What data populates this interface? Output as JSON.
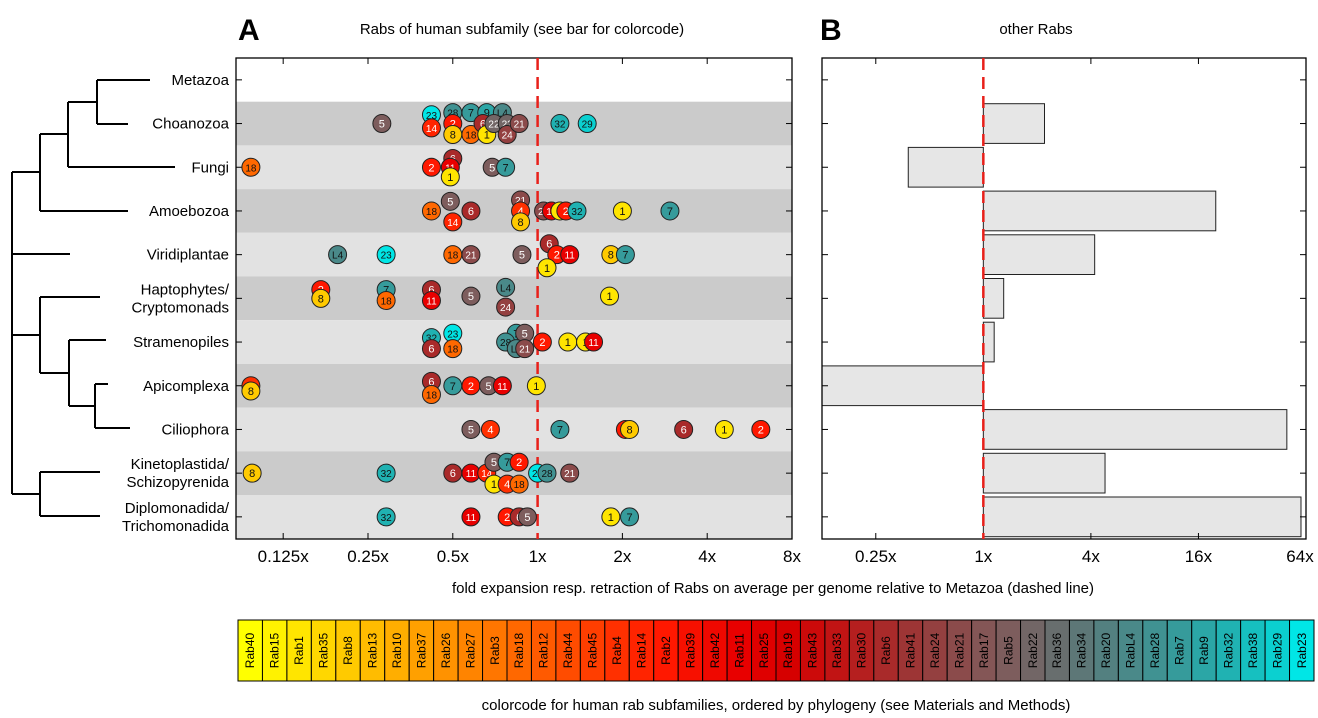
{
  "panels": {
    "a": {
      "letter": "A",
      "title": "Rabs of human subfamily (see bar for colorcode)"
    },
    "b": {
      "letter": "B",
      "title": "other Rabs"
    }
  },
  "xlabel": "fold expansion resp. retraction of Rabs on average per genome relative to Metazoa (dashed line)",
  "colorbar_caption": "colorcode for human rab subfamilies, ordered by phylogeny (see Materials and Methods)",
  "taxa": [
    {
      "label": "Metazoa"
    },
    {
      "label": "Choanozoa"
    },
    {
      "label": "Fungi"
    },
    {
      "label": "Amoebozoa"
    },
    {
      "label": "Viridiplantae"
    },
    {
      "label": "Haptophytes/\nCryptomonads"
    },
    {
      "label": "Stramenopiles"
    },
    {
      "label": "Apicomplexa"
    },
    {
      "label": "Ciliophora"
    },
    {
      "label": "Kinetoplastida/\nSchizopyrenida"
    },
    {
      "label": "Diplomonadida/\nTrichomonadida"
    }
  ],
  "colors": {
    "Rab40": "#ffff00",
    "Rab15": "#fff200",
    "Rab1": "#ffe500",
    "Rab35": "#ffd700",
    "Rab8": "#ffca00",
    "Rab13": "#ffbc00",
    "Rab10": "#ffae00",
    "Rab37": "#ffa000",
    "Rab26": "#ff9200",
    "Rab27": "#ff8400",
    "Rab3": "#ff7600",
    "Rab18": "#ff6800",
    "Rab12": "#ff5a00",
    "Rab44": "#ff4c00",
    "Rab45": "#ff3e00",
    "Rab4": "#ff3000",
    "Rab14": "#ff2400",
    "Rab2": "#ff1800",
    "Rab39": "#f71000",
    "Rab42": "#ef0800",
    "Rab11": "#e80000",
    "Rab25": "#df0000",
    "Rab19": "#d60000",
    "Rab43": "#cc0a0a",
    "Rab33": "#c11414",
    "Rab30": "#b51f1f",
    "Rab6": "#a92a2a",
    "Rab41": "#9d3535",
    "Rab24": "#944040",
    "Rab21": "#8b4b4b",
    "Rab17": "#845656",
    "Rab5": "#7d5d5d",
    "Rab22": "#726666",
    "Rab36": "#686e6e",
    "Rab34": "#5d7777",
    "Rab20": "#538080",
    "RabL4": "#4a8989",
    "Rab28": "#409292",
    "Rab7": "#369b9b",
    "Rab9": "#2ba6a6",
    "Rab32": "#20b2b2",
    "Rab38": "#16c0c0",
    "Rab29": "#0bd0d0",
    "Rab23": "#00e6e6"
  },
  "colorbar_order": [
    "Rab40",
    "Rab15",
    "Rab1",
    "Rab35",
    "Rab8",
    "Rab13",
    "Rab10",
    "Rab37",
    "Rab26",
    "Rab27",
    "Rab3",
    "Rab18",
    "Rab12",
    "Rab44",
    "Rab45",
    "Rab4",
    "Rab14",
    "Rab2",
    "Rab39",
    "Rab42",
    "Rab11",
    "Rab25",
    "Rab19",
    "Rab43",
    "Rab33",
    "Rab30",
    "Rab6",
    "Rab41",
    "Rab24",
    "Rab21",
    "Rab17",
    "Rab5",
    "Rab22",
    "Rab36",
    "Rab34",
    "Rab20",
    "RabL4",
    "Rab28",
    "Rab7",
    "Rab9",
    "Rab32",
    "Rab38",
    "Rab29",
    "Rab23"
  ],
  "chart_data": [
    {
      "type": "scatter",
      "panel": "A",
      "title": "Rabs of human subfamily (see bar for colorcode)",
      "x_scale": "log2",
      "xlim": [
        0.085,
        8
      ],
      "xticks": [
        0.125,
        0.25,
        0.5,
        1,
        2,
        4,
        8
      ],
      "xtick_labels": [
        "0.125x",
        "0.25x",
        "0.5x",
        "1x",
        "2x",
        "4x",
        "8x"
      ],
      "reference_line": 1,
      "categories": [
        "Metazoa",
        "Choanozoa",
        "Fungi",
        "Amoebozoa",
        "Viridiplantae",
        "Haptophytes/Cryptomonads",
        "Stramenopiles",
        "Apicomplexa",
        "Ciliophora",
        "Kinetoplastida/Schizopyrenida",
        "Diplomonadida/Trichomonadida"
      ],
      "points": [
        {
          "row": 1,
          "rab": "Rab23",
          "label": "23",
          "x": 0.42,
          "dy": -0.2
        },
        {
          "row": 1,
          "rab": "Rab28",
          "label": "28",
          "x": 0.5,
          "dy": -0.25
        },
        {
          "row": 1,
          "rab": "Rab7",
          "label": "7",
          "x": 0.58,
          "dy": -0.25
        },
        {
          "row": 1,
          "rab": "Rab9",
          "label": "9",
          "x": 0.66,
          "dy": -0.25
        },
        {
          "row": 1,
          "rab": "RabL4",
          "label": "L4",
          "x": 0.75,
          "dy": -0.25
        },
        {
          "row": 1,
          "rab": "Rab5",
          "label": "5",
          "x": 0.28,
          "dy": 0
        },
        {
          "row": 1,
          "rab": "Rab14",
          "label": "14",
          "x": 0.42,
          "dy": 0.1
        },
        {
          "row": 1,
          "rab": "Rab2",
          "label": "2",
          "x": 0.5,
          "dy": 0
        },
        {
          "row": 1,
          "rab": "Rab8",
          "label": "8",
          "x": 0.5,
          "dy": 0.25
        },
        {
          "row": 1,
          "rab": "Rab18",
          "label": "18",
          "x": 0.58,
          "dy": 0.25
        },
        {
          "row": 1,
          "rab": "Rab6",
          "label": "6",
          "x": 0.64,
          "dy": 0
        },
        {
          "row": 1,
          "rab": "Rab1",
          "label": "1",
          "x": 0.66,
          "dy": 0.25
        },
        {
          "row": 1,
          "rab": "Rab22",
          "label": "22",
          "x": 0.7,
          "dy": 0
        },
        {
          "row": 1,
          "rab": "Rab22",
          "label": "22",
          "x": 0.78,
          "dy": 0
        },
        {
          "row": 1,
          "rab": "Rab24",
          "label": "24",
          "x": 0.78,
          "dy": 0.25
        },
        {
          "row": 1,
          "rab": "Rab21",
          "label": "21",
          "x": 0.86,
          "dy": 0
        },
        {
          "row": 1,
          "rab": "Rab32",
          "label": "32",
          "x": 1.2,
          "dy": 0
        },
        {
          "row": 1,
          "rab": "Rab29",
          "label": "29",
          "x": 1.5,
          "dy": 0
        },
        {
          "row": 2,
          "rab": "Rab18",
          "label": "18",
          "x": 0.096,
          "dy": 0
        },
        {
          "row": 2,
          "rab": "Rab2",
          "label": "2",
          "x": 0.42,
          "dy": 0
        },
        {
          "row": 2,
          "rab": "Rab6",
          "label": "6",
          "x": 0.5,
          "dy": -0.2
        },
        {
          "row": 2,
          "rab": "Rab11",
          "label": "11",
          "x": 0.49,
          "dy": 0
        },
        {
          "row": 2,
          "rab": "Rab1",
          "label": "1",
          "x": 0.49,
          "dy": 0.22
        },
        {
          "row": 2,
          "rab": "Rab5",
          "label": "5",
          "x": 0.69,
          "dy": 0
        },
        {
          "row": 2,
          "rab": "Rab7",
          "label": "7",
          "x": 0.77,
          "dy": 0
        },
        {
          "row": 3,
          "rab": "Rab5",
          "label": "5",
          "x": 0.49,
          "dy": -0.22
        },
        {
          "row": 3,
          "rab": "Rab21",
          "label": "21",
          "x": 0.87,
          "dy": -0.25
        },
        {
          "row": 3,
          "rab": "Rab18",
          "label": "18",
          "x": 0.42,
          "dy": 0
        },
        {
          "row": 3,
          "rab": "Rab6",
          "label": "6",
          "x": 0.58,
          "dy": 0
        },
        {
          "row": 3,
          "rab": "Rab4",
          "label": "4",
          "x": 0.87,
          "dy": 0
        },
        {
          "row": 3,
          "rab": "Rab14",
          "label": "14",
          "x": 0.5,
          "dy": 0.25
        },
        {
          "row": 3,
          "rab": "Rab8",
          "label": "8",
          "x": 0.87,
          "dy": 0.25
        },
        {
          "row": 3,
          "rab": "Rab21",
          "label": "21",
          "x": 1.05,
          "dy": 0
        },
        {
          "row": 3,
          "rab": "Rab11",
          "label": "11",
          "x": 1.12,
          "dy": 0
        },
        {
          "row": 3,
          "rab": "Rab1",
          "label": "1",
          "x": 1.2,
          "dy": 0
        },
        {
          "row": 3,
          "rab": "Rab2",
          "label": "2",
          "x": 1.26,
          "dy": 0
        },
        {
          "row": 3,
          "rab": "Rab32",
          "label": "32",
          "x": 1.38,
          "dy": 0
        },
        {
          "row": 3,
          "rab": "Rab1",
          "label": "1",
          "x": 2.0,
          "dy": 0
        },
        {
          "row": 3,
          "rab": "Rab7",
          "label": "7",
          "x": 2.95,
          "dy": 0
        },
        {
          "row": 4,
          "rab": "RabL4",
          "label": "L4",
          "x": 0.195,
          "dy": 0
        },
        {
          "row": 4,
          "rab": "Rab23",
          "label": "23",
          "x": 0.29,
          "dy": 0
        },
        {
          "row": 4,
          "rab": "Rab18",
          "label": "18",
          "x": 0.5,
          "dy": 0
        },
        {
          "row": 4,
          "rab": "Rab21",
          "label": "21",
          "x": 0.58,
          "dy": 0
        },
        {
          "row": 4,
          "rab": "Rab5",
          "label": "5",
          "x": 0.88,
          "dy": 0
        },
        {
          "row": 4,
          "rab": "Rab6",
          "label": "6",
          "x": 1.1,
          "dy": -0.25
        },
        {
          "row": 4,
          "rab": "Rab2",
          "label": "2",
          "x": 1.17,
          "dy": 0
        },
        {
          "row": 4,
          "rab": "Rab11",
          "label": "11",
          "x": 1.3,
          "dy": 0
        },
        {
          "row": 4,
          "rab": "Rab1",
          "label": "1",
          "x": 1.08,
          "dy": 0.3
        },
        {
          "row": 4,
          "rab": "Rab8",
          "label": "8",
          "x": 1.82,
          "dy": 0
        },
        {
          "row": 4,
          "rab": "Rab7",
          "label": "7",
          "x": 2.05,
          "dy": 0
        },
        {
          "row": 5,
          "rab": "Rab2",
          "label": "2",
          "x": 0.17,
          "dy": -0.2
        },
        {
          "row": 5,
          "rab": "Rab8",
          "label": "8",
          "x": 0.17,
          "dy": 0
        },
        {
          "row": 5,
          "rab": "Rab7",
          "label": "7",
          "x": 0.29,
          "dy": -0.2
        },
        {
          "row": 5,
          "rab": "Rab18",
          "label": "18",
          "x": 0.29,
          "dy": 0.05
        },
        {
          "row": 5,
          "rab": "Rab6",
          "label": "6",
          "x": 0.42,
          "dy": -0.2
        },
        {
          "row": 5,
          "rab": "Rab11",
          "label": "11",
          "x": 0.42,
          "dy": 0.05
        },
        {
          "row": 5,
          "rab": "Rab5",
          "label": "5",
          "x": 0.58,
          "dy": -0.05
        },
        {
          "row": 5,
          "rab": "RabL4",
          "label": "L4",
          "x": 0.77,
          "dy": -0.25
        },
        {
          "row": 5,
          "rab": "Rab24",
          "label": "24",
          "x": 0.77,
          "dy": 0.2
        },
        {
          "row": 5,
          "rab": "Rab1",
          "label": "1",
          "x": 1.8,
          "dy": -0.05
        },
        {
          "row": 6,
          "rab": "Rab32",
          "label": "32",
          "x": 0.42,
          "dy": -0.1
        },
        {
          "row": 6,
          "rab": "Rab23",
          "label": "23",
          "x": 0.5,
          "dy": -0.2
        },
        {
          "row": 6,
          "rab": "Rab6",
          "label": "6",
          "x": 0.42,
          "dy": 0.15
        },
        {
          "row": 6,
          "rab": "Rab18",
          "label": "18",
          "x": 0.5,
          "dy": 0.15
        },
        {
          "row": 6,
          "rab": "Rab7",
          "label": "7",
          "x": 0.84,
          "dy": -0.2
        },
        {
          "row": 6,
          "rab": "Rab5",
          "label": "5",
          "x": 0.9,
          "dy": -0.2
        },
        {
          "row": 6,
          "rab": "Rab28",
          "label": "28",
          "x": 0.77,
          "dy": 0
        },
        {
          "row": 6,
          "rab": "RabL4",
          "label": "L4",
          "x": 0.84,
          "dy": 0.15
        },
        {
          "row": 6,
          "rab": "Rab21",
          "label": "21",
          "x": 0.9,
          "dy": 0.15
        },
        {
          "row": 6,
          "rab": "Rab2",
          "label": "2",
          "x": 1.04,
          "dy": 0
        },
        {
          "row": 6,
          "rab": "Rab1",
          "label": "1",
          "x": 1.28,
          "dy": 0
        },
        {
          "row": 6,
          "rab": "Rab1",
          "label": "1",
          "x": 1.48,
          "dy": 0
        },
        {
          "row": 6,
          "rab": "Rab11",
          "label": "11",
          "x": 1.58,
          "dy": 0
        },
        {
          "row": 7,
          "rab": "Rab4",
          "label": "4",
          "x": 0.096,
          "dy": 0
        },
        {
          "row": 7,
          "rab": "Rab8",
          "label": "8",
          "x": 0.096,
          "dy": 0.12
        },
        {
          "row": 7,
          "rab": "Rab6",
          "label": "6",
          "x": 0.42,
          "dy": -0.1
        },
        {
          "row": 7,
          "rab": "Rab18",
          "label": "18",
          "x": 0.42,
          "dy": 0.2
        },
        {
          "row": 7,
          "rab": "Rab7",
          "label": "7",
          "x": 0.5,
          "dy": 0
        },
        {
          "row": 7,
          "rab": "Rab2",
          "label": "2",
          "x": 0.58,
          "dy": 0
        },
        {
          "row": 7,
          "rab": "Rab5",
          "label": "5",
          "x": 0.67,
          "dy": 0
        },
        {
          "row": 7,
          "rab": "Rab11",
          "label": "11",
          "x": 0.75,
          "dy": 0
        },
        {
          "row": 7,
          "rab": "Rab1",
          "label": "1",
          "x": 0.99,
          "dy": 0
        },
        {
          "row": 8,
          "rab": "Rab5",
          "label": "5",
          "x": 0.58,
          "dy": 0
        },
        {
          "row": 8,
          "rab": "Rab4",
          "label": "4",
          "x": 0.68,
          "dy": 0
        },
        {
          "row": 8,
          "rab": "Rab7",
          "label": "7",
          "x": 1.2,
          "dy": 0
        },
        {
          "row": 8,
          "rab": "Rab2",
          "label": "2",
          "x": 2.05,
          "dy": 0
        },
        {
          "row": 8,
          "rab": "Rab8",
          "label": "8",
          "x": 2.12,
          "dy": 0
        },
        {
          "row": 8,
          "rab": "Rab6",
          "label": "6",
          "x": 3.3,
          "dy": 0
        },
        {
          "row": 8,
          "rab": "Rab1",
          "label": "1",
          "x": 4.6,
          "dy": 0
        },
        {
          "row": 8,
          "rab": "Rab2",
          "label": "2",
          "x": 6.2,
          "dy": 0
        },
        {
          "row": 9,
          "rab": "Rab8",
          "label": "8",
          "x": 0.097,
          "dy": 0
        },
        {
          "row": 9,
          "rab": "Rab32",
          "label": "32",
          "x": 0.29,
          "dy": 0
        },
        {
          "row": 9,
          "rab": "Rab6",
          "label": "6",
          "x": 0.5,
          "dy": 0
        },
        {
          "row": 9,
          "rab": "Rab11",
          "label": "11",
          "x": 0.58,
          "dy": 0
        },
        {
          "row": 9,
          "rab": "Rab14",
          "label": "14",
          "x": 0.66,
          "dy": 0
        },
        {
          "row": 9,
          "rab": "Rab5",
          "label": "5",
          "x": 0.7,
          "dy": -0.25
        },
        {
          "row": 9,
          "rab": "Rab7",
          "label": "7",
          "x": 0.78,
          "dy": -0.25
        },
        {
          "row": 9,
          "rab": "Rab2",
          "label": "2",
          "x": 0.86,
          "dy": -0.25
        },
        {
          "row": 9,
          "rab": "Rab1",
          "label": "1",
          "x": 0.7,
          "dy": 0.25
        },
        {
          "row": 9,
          "rab": "Rab4",
          "label": "4",
          "x": 0.78,
          "dy": 0.25
        },
        {
          "row": 9,
          "rab": "Rab18",
          "label": "18",
          "x": 0.86,
          "dy": 0.25
        },
        {
          "row": 9,
          "rab": "Rab23",
          "label": "23",
          "x": 1.0,
          "dy": 0
        },
        {
          "row": 9,
          "rab": "Rab28",
          "label": "28",
          "x": 1.08,
          "dy": 0
        },
        {
          "row": 9,
          "rab": "Rab21",
          "label": "21",
          "x": 1.3,
          "dy": 0
        },
        {
          "row": 10,
          "rab": "Rab32",
          "label": "32",
          "x": 0.29,
          "dy": 0
        },
        {
          "row": 10,
          "rab": "Rab11",
          "label": "11",
          "x": 0.58,
          "dy": 0
        },
        {
          "row": 10,
          "rab": "Rab2",
          "label": "2",
          "x": 0.78,
          "dy": 0
        },
        {
          "row": 10,
          "rab": "Rab6",
          "label": "6",
          "x": 0.86,
          "dy": 0
        },
        {
          "row": 10,
          "rab": "Rab5",
          "label": "5",
          "x": 0.92,
          "dy": 0
        },
        {
          "row": 10,
          "rab": "Rab1",
          "label": "1",
          "x": 1.82,
          "dy": 0
        },
        {
          "row": 10,
          "rab": "Rab7",
          "label": "7",
          "x": 2.12,
          "dy": 0
        }
      ]
    },
    {
      "type": "bar",
      "orientation": "horizontal",
      "panel": "B",
      "title": "other Rabs",
      "x_scale": "log2",
      "xlim": [
        0.125,
        64
      ],
      "xticks": [
        0.25,
        1,
        4,
        16,
        64
      ],
      "xtick_labels": [
        "0.25x",
        "1x",
        "4x",
        "16x",
        "64x"
      ],
      "reference_line": 1,
      "categories": [
        "Metazoa",
        "Choanozoa",
        "Fungi",
        "Amoebozoa",
        "Viridiplantae",
        "Haptophytes/Cryptomonads",
        "Stramenopiles",
        "Apicomplexa",
        "Ciliophora",
        "Kinetoplastida/Schizopyrenida",
        "Diplomonadida/Trichomonadida"
      ],
      "values": [
        1,
        2.2,
        0.38,
        20,
        4.2,
        1.3,
        1.15,
        0.125,
        50,
        4.8,
        60
      ]
    }
  ]
}
